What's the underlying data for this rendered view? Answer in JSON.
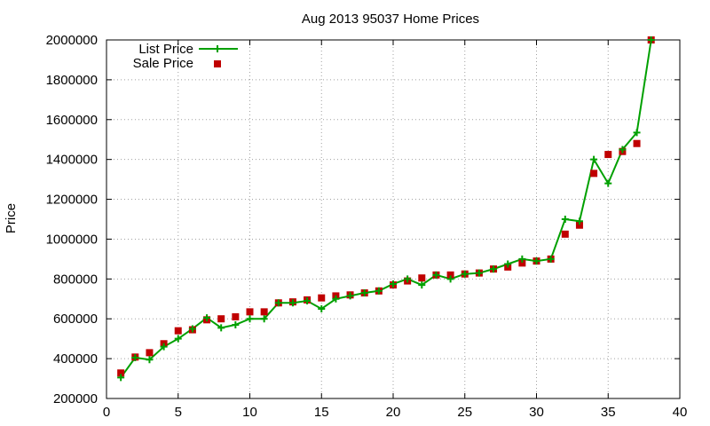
{
  "chart_data": {
    "type": "line",
    "title": "Aug 2013 95037 Home Prices",
    "xlabel": "",
    "ylabel": "Price",
    "xlim": [
      0,
      40
    ],
    "ylim": [
      200000,
      2000000
    ],
    "x_ticks": [
      "0",
      "5",
      "10",
      "15",
      "20",
      "25",
      "30",
      "35",
      "40"
    ],
    "y_ticks": [
      "200000",
      "400000",
      "600000",
      "800000",
      "1000000",
      "1200000",
      "1400000",
      "1600000",
      "1800000",
      "2000000"
    ],
    "grid": true,
    "legend_position": "top-left",
    "colors": {
      "list_price": "#00a000",
      "sale_price": "#c00000"
    },
    "x": [
      1,
      2,
      3,
      4,
      5,
      6,
      7,
      8,
      9,
      10,
      11,
      12,
      13,
      14,
      15,
      16,
      17,
      18,
      19,
      20,
      21,
      22,
      23,
      24,
      25,
      26,
      27,
      28,
      29,
      30,
      31,
      32,
      33,
      34,
      35,
      36,
      37,
      38
    ],
    "series": [
      {
        "name": "List Price",
        "style": "line-with-plus-markers",
        "values": [
          305000,
          405000,
          395000,
          460000,
          500000,
          550000,
          605000,
          555000,
          570000,
          600000,
          600000,
          680000,
          680000,
          690000,
          650000,
          700000,
          715000,
          730000,
          740000,
          775000,
          800000,
          770000,
          820000,
          800000,
          825000,
          830000,
          850000,
          875000,
          900000,
          890000,
          900000,
          1100000,
          1090000,
          1400000,
          1280000,
          1450000,
          1535000,
          2000000
        ]
      },
      {
        "name": "Sale Price",
        "style": "square-markers",
        "values": [
          328000,
          408000,
          430000,
          475000,
          540000,
          545000,
          595000,
          600000,
          610000,
          635000,
          635000,
          680000,
          685000,
          695000,
          705000,
          715000,
          720000,
          730000,
          740000,
          770000,
          790000,
          805000,
          820000,
          820000,
          825000,
          830000,
          850000,
          860000,
          880000,
          890000,
          900000,
          1025000,
          1070000,
          1330000,
          1425000,
          1440000,
          1480000,
          2000000
        ]
      }
    ]
  }
}
